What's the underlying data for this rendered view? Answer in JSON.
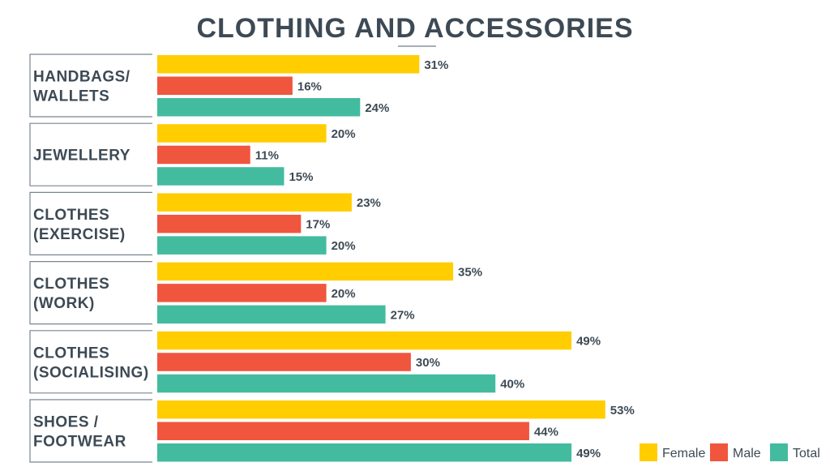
{
  "chart_data": {
    "type": "bar",
    "orientation": "horizontal",
    "title": "CLOTHING AND ACCESSORIES",
    "categories": [
      [
        "HANDBAGS/",
        "WALLETS"
      ],
      [
        "JEWELLERY"
      ],
      [
        "CLOTHES",
        "(EXERCISE)"
      ],
      [
        "CLOTHES",
        "(WORK)"
      ],
      [
        "CLOTHES",
        "(SOCIALISING)"
      ],
      [
        "SHOES /",
        "FOOTWEAR"
      ]
    ],
    "series": [
      {
        "name": "Female",
        "color": "#ffcd00",
        "values": [
          31,
          20,
          23,
          35,
          49,
          53
        ]
      },
      {
        "name": "Male",
        "color": "#f0553d",
        "values": [
          16,
          11,
          17,
          20,
          30,
          44
        ]
      },
      {
        "name": "Total",
        "color": "#43bb9f",
        "values": [
          24,
          15,
          20,
          27,
          40,
          49
        ]
      }
    ],
    "value_suffix": "%",
    "legend": "bottom-right",
    "grid": false,
    "xlim": [
      0,
      53
    ]
  }
}
